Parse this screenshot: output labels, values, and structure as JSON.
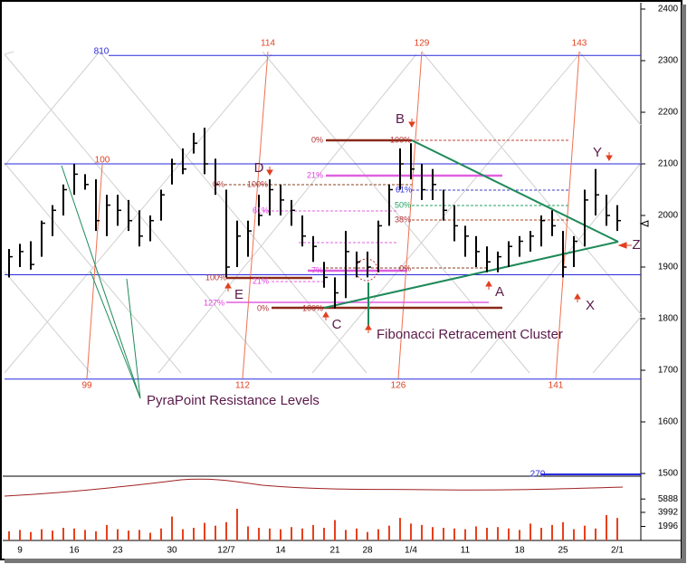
{
  "chart_data": {
    "type": "ohlc",
    "categories": [
      null,
      "9",
      null,
      null,
      null,
      null,
      "16",
      null,
      null,
      null,
      "23",
      null,
      null,
      null,
      null,
      "30",
      null,
      null,
      null,
      null,
      "12/7",
      null,
      null,
      null,
      null,
      "14",
      null,
      null,
      null,
      null,
      "21",
      null,
      null,
      "28",
      null,
      null,
      null,
      "1/4",
      null,
      null,
      null,
      null,
      "11",
      null,
      null,
      null,
      null,
      "18",
      null,
      null,
      null,
      "25",
      null,
      null,
      null,
      null,
      "2/1"
    ],
    "high": [
      1935,
      1945,
      1950,
      1990,
      2020,
      2060,
      2100,
      2080,
      2070,
      2040,
      2040,
      2030,
      2010,
      2000,
      2050,
      2110,
      2130,
      2160,
      2170,
      2110,
      2050,
      1990,
      1990,
      2040,
      2070,
      2060,
      2030,
      2000,
      1960,
      1910,
      1880,
      1970,
      1930,
      1930,
      1990,
      2060,
      2130,
      2140,
      2100,
      2090,
      2050,
      2020,
      1980,
      1960,
      1940,
      1930,
      1950,
      1960,
      1970,
      2000,
      2010,
      1970,
      1960,
      2050,
      2090,
      2040,
      2020
    ],
    "low": [
      1880,
      1900,
      1895,
      1920,
      1960,
      2000,
      2040,
      2050,
      1970,
      1960,
      1980,
      1970,
      1940,
      1950,
      1990,
      2060,
      2080,
      2120,
      2080,
      2040,
      1880,
      1900,
      1920,
      1980,
      2000,
      2000,
      1980,
      1940,
      1910,
      1860,
      1820,
      1840,
      1880,
      1880,
      1890,
      1980,
      2050,
      2070,
      2030,
      2030,
      1990,
      1950,
      1920,
      1900,
      1890,
      1890,
      1900,
      1920,
      1930,
      1940,
      1960,
      1880,
      1900,
      1940,
      2000,
      1980,
      1970
    ],
    "close": [
      1920,
      1930,
      1905,
      1985,
      2010,
      2050,
      2080,
      2060,
      1990,
      2020,
      2010,
      1990,
      1960,
      1990,
      2040,
      2100,
      2090,
      2140,
      2100,
      2060,
      1900,
      1960,
      1970,
      2000,
      2050,
      2030,
      2010,
      1960,
      1940,
      1880,
      1850,
      1930,
      1910,
      1900,
      1980,
      2050,
      2100,
      2090,
      2050,
      2060,
      2010,
      1980,
      1960,
      1930,
      1910,
      1920,
      1940,
      1950,
      1960,
      1990,
      1980,
      1900,
      1950,
      2030,
      2040,
      2000,
      1990
    ],
    "volume": [
      1300,
      1500,
      1200,
      1600,
      1400,
      1800,
      1700,
      1500,
      1300,
      2200,
      1600,
      1400,
      1500,
      1100,
      1700,
      3400,
      1600,
      1800,
      2500,
      2100,
      2600,
      4500,
      2000,
      1800,
      1700,
      1600,
      1900,
      1700,
      2200,
      1800,
      2900,
      1500,
      1700,
      1200,
      1600,
      2100,
      3200,
      2400,
      2200,
      1900,
      1800,
      1700,
      1600,
      2000,
      1800,
      1900,
      1700,
      1500,
      2400,
      1800,
      2200,
      2600,
      1600,
      2100,
      1700,
      3600,
      3200
    ],
    "ylim": [
      1500,
      2400
    ],
    "yticks": [
      1500,
      1600,
      1700,
      1800,
      1900,
      2000,
      2100,
      2200,
      2300,
      2400
    ],
    "volume_ylim": [
      0,
      9000
    ],
    "volume_ticks": [
      1996,
      3992,
      5888
    ],
    "levels": [
      2310,
      2100,
      1885,
      1683
    ],
    "bar_color": "#000000",
    "volume_color": "#e8401c",
    "annotations": [
      "810",
      "114",
      "129",
      "143",
      "100",
      "99",
      "112",
      "126",
      "141",
      "270",
      "B",
      "D",
      "Y",
      "Z",
      "E",
      "C",
      "A",
      "X",
      "Fibonacci Retracement Cluster",
      "PyraPoint Resistance Levels",
      "0%",
      "100%",
      "21%",
      "0%",
      "100%",
      "61%",
      "100%",
      "21%",
      "127%",
      "0%",
      "100%",
      "7%",
      "0%",
      "61%",
      "50%",
      "38%"
    ]
  }
}
